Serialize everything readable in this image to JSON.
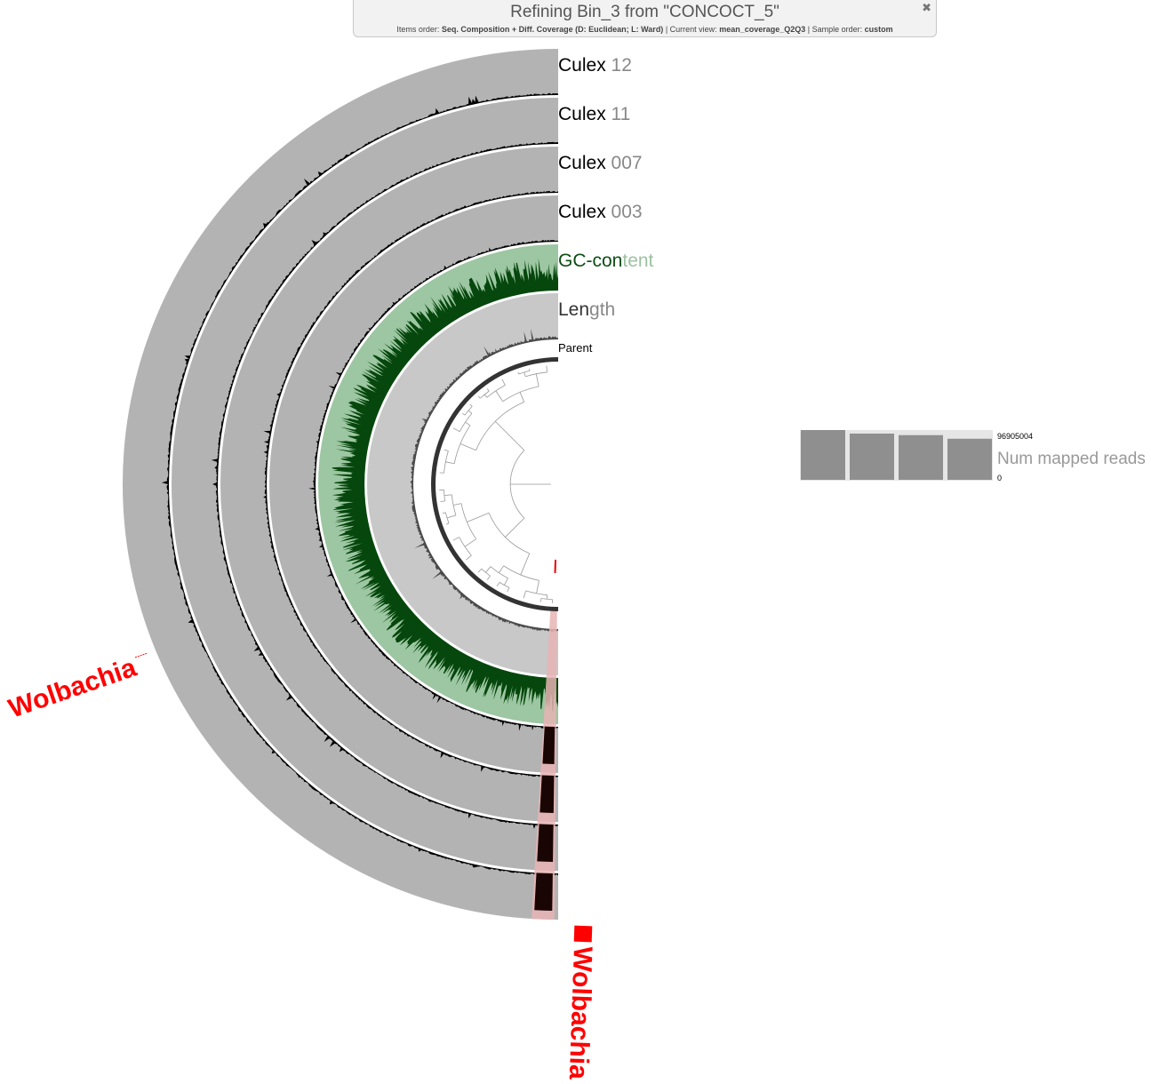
{
  "header": {
    "title": "Refining Bin_3 from \"CONCOCT_5\"",
    "items_order_label": "Items order:",
    "items_order_value": "Seq. Composition + Diff. Coverage (D: Euclidean; L: Ward)",
    "current_view_label": "Current view:",
    "current_view_value": "mean_coverage_Q2Q3",
    "sample_order_label": "Sample order:",
    "sample_order_value": "custom",
    "close_icon": "close-icon"
  },
  "layers": [
    {
      "label_prefix": "Culex",
      "label_suffix": "12",
      "color": "#000000",
      "bg": "#b3b3b3"
    },
    {
      "label_prefix": "Culex",
      "label_suffix": "11",
      "color": "#000000",
      "bg": "#b3b3b3"
    },
    {
      "label_prefix": "Culex",
      "label_suffix": "007",
      "color": "#000000",
      "bg": "#b3b3b3"
    },
    {
      "label_prefix": "Culex",
      "label_suffix": "003",
      "color": "#000000",
      "bg": "#b3b3b3"
    },
    {
      "label_prefix": "GC-con",
      "label_suffix": "tent",
      "color": "#0d4d14",
      "bg": "#9dc6a2"
    },
    {
      "label_prefix": "Len",
      "label_suffix": "gth",
      "color": "#333333",
      "bg": "#c8c8c8"
    }
  ],
  "parent_label": "Parent",
  "num_mapped_reads": {
    "label": "Num mapped reads",
    "max_label": "96905004",
    "min_label": "0",
    "max": 96905004,
    "values": [
      96905004,
      90000000,
      87000000,
      80000000
    ],
    "bar_color": "#8f8f8f",
    "bg_color": "#e6e6e6"
  },
  "highlight": {
    "name": "Wolbachia",
    "color": "#ff0000"
  }
}
